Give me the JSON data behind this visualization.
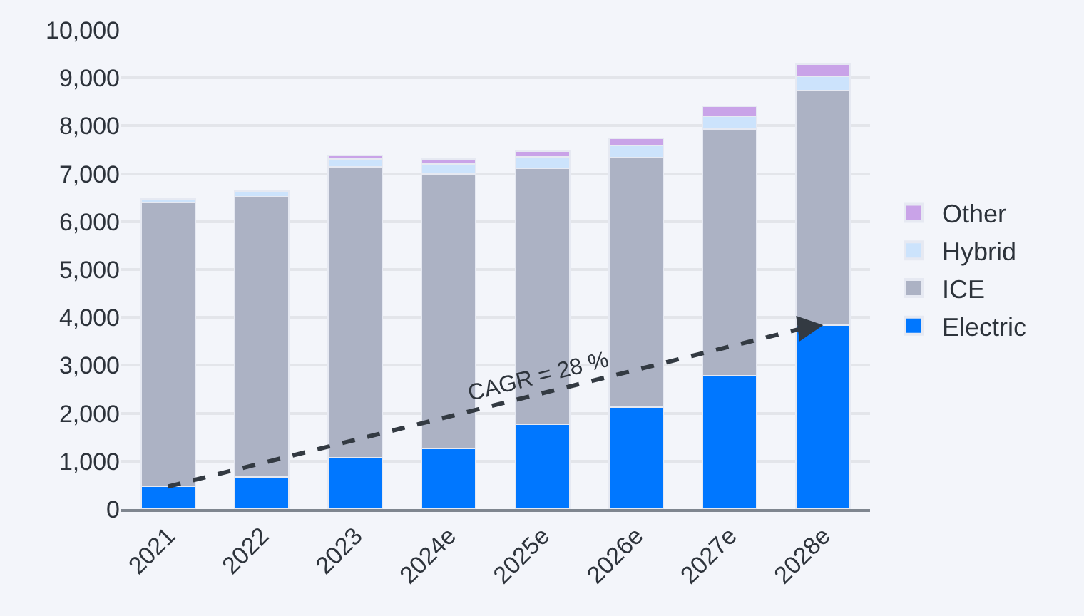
{
  "chart_data": {
    "type": "bar",
    "stacked": true,
    "categories": [
      "2021",
      "2022",
      "2023",
      "2024e",
      "2025e",
      "2026e",
      "2027e",
      "2028e"
    ],
    "series": [
      {
        "name": "Electric",
        "color": "#0077ff",
        "values": [
          470,
          670,
          1070,
          1270,
          1770,
          2130,
          2780,
          3840
        ]
      },
      {
        "name": "ICE",
        "color": "#acb2c4",
        "values": [
          5930,
          5850,
          6080,
          5730,
          5350,
          5200,
          5150,
          4900
        ]
      },
      {
        "name": "Hybrid",
        "color": "#cce3fc",
        "values": [
          80,
          110,
          150,
          200,
          230,
          260,
          270,
          290
        ]
      },
      {
        "name": "Other",
        "color": "#c9a3e8",
        "values": [
          null,
          null,
          80,
          100,
          120,
          150,
          210,
          250
        ]
      }
    ],
    "ylim": [
      0,
      10000
    ],
    "yticks": [
      {
        "value": 0,
        "label": "0"
      },
      {
        "value": 1000,
        "label": "1,000"
      },
      {
        "value": 2000,
        "label": "2,000"
      },
      {
        "value": 3000,
        "label": "3,000"
      },
      {
        "value": 4000,
        "label": "4,000"
      },
      {
        "value": 5000,
        "label": "5,000"
      },
      {
        "value": 6000,
        "label": "6,000"
      },
      {
        "value": 7000,
        "label": "7,000"
      },
      {
        "value": 8000,
        "label": "8,000"
      },
      {
        "value": 9000,
        "label": "9,000"
      },
      {
        "value": 10000,
        "label": "10,000"
      }
    ],
    "grid": "y",
    "legend": "right",
    "annotations": [
      "CAGR = 28 %"
    ]
  }
}
